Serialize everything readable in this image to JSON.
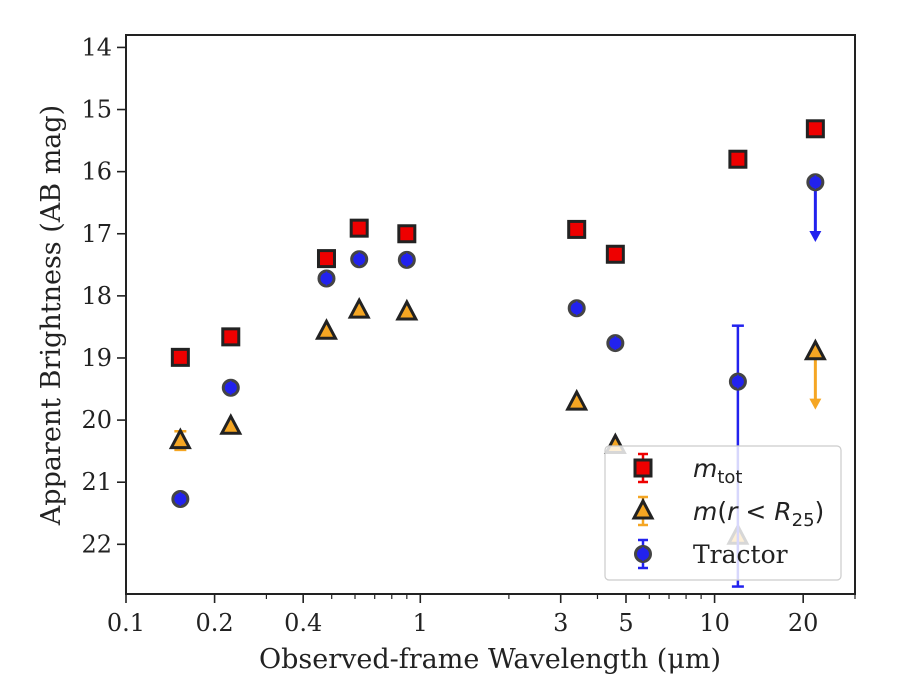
{
  "chart_data": {
    "type": "scatter",
    "xlabel": "Observed-frame Wavelength (μm)",
    "ylabel": "Apparent Brightness (AB mag)",
    "xscale": "log",
    "yinverted": true,
    "xlim": [
      0.1,
      30
    ],
    "ylim": [
      22.8,
      13.8
    ],
    "xticks": [
      {
        "value": 0.1,
        "label": "0.1"
      },
      {
        "value": 0.2,
        "label": "0.2"
      },
      {
        "value": 0.4,
        "label": "0.4"
      },
      {
        "value": 1,
        "label": "1"
      },
      {
        "value": 3,
        "label": "3"
      },
      {
        "value": 5,
        "label": "5"
      },
      {
        "value": 10,
        "label": "10"
      },
      {
        "value": 20,
        "label": "20"
      }
    ],
    "yticks": [
      {
        "value": 14,
        "label": "14"
      },
      {
        "value": 15,
        "label": "15"
      },
      {
        "value": 16,
        "label": "16"
      },
      {
        "value": 17,
        "label": "17"
      },
      {
        "value": 18,
        "label": "18"
      },
      {
        "value": 19,
        "label": "19"
      },
      {
        "value": 20,
        "label": "20"
      },
      {
        "value": 21,
        "label": "21"
      },
      {
        "value": 22,
        "label": "22"
      }
    ],
    "legend_position": "lower-right",
    "series": [
      {
        "name": "m_tot",
        "marker": "square",
        "color": "#ee0000",
        "edgecolor": "#222222",
        "errcolor": "#ee0000",
        "points": [
          {
            "x": 0.153,
            "y": 18.99
          },
          {
            "x": 0.227,
            "y": 18.66
          },
          {
            "x": 0.48,
            "y": 17.4
          },
          {
            "x": 0.62,
            "y": 16.91
          },
          {
            "x": 0.9,
            "y": 17.0
          },
          {
            "x": 3.4,
            "y": 16.93
          },
          {
            "x": 4.6,
            "y": 17.33
          },
          {
            "x": 12.0,
            "y": 15.8
          },
          {
            "x": 22.0,
            "y": 15.31
          }
        ]
      },
      {
        "name": "m(r < R25)",
        "marker": "triangle",
        "color": "#f5a623",
        "edgecolor": "#222222",
        "errcolor": "#f5a623",
        "points": [
          {
            "x": 0.153,
            "y": 20.33,
            "yerr": 0.15
          },
          {
            "x": 0.227,
            "y": 20.1
          },
          {
            "x": 0.48,
            "y": 18.57
          },
          {
            "x": 0.62,
            "y": 18.23
          },
          {
            "x": 0.9,
            "y": 18.26
          },
          {
            "x": 3.4,
            "y": 19.71
          },
          {
            "x": 4.6,
            "y": 20.41
          },
          {
            "x": 12.0,
            "y": 21.87
          },
          {
            "x": 22.0,
            "y": 18.9,
            "upper_limit_to": 19.8
          }
        ]
      },
      {
        "name": "Tractor",
        "marker": "circle",
        "color": "#2222ee",
        "edgecolor": "#444444",
        "errcolor": "#2222ee",
        "points": [
          {
            "x": 0.153,
            "y": 21.27
          },
          {
            "x": 0.227,
            "y": 19.48
          },
          {
            "x": 0.48,
            "y": 17.72
          },
          {
            "x": 0.62,
            "y": 17.41
          },
          {
            "x": 0.9,
            "y": 17.42
          },
          {
            "x": 3.4,
            "y": 18.2
          },
          {
            "x": 4.6,
            "y": 18.76
          },
          {
            "x": 12.0,
            "y": 19.38,
            "yerr_lo": 0.9,
            "yerr_hi": 3.3
          },
          {
            "x": 22.0,
            "y": 16.17,
            "upper_limit_to": 17.1
          }
        ]
      }
    ]
  }
}
